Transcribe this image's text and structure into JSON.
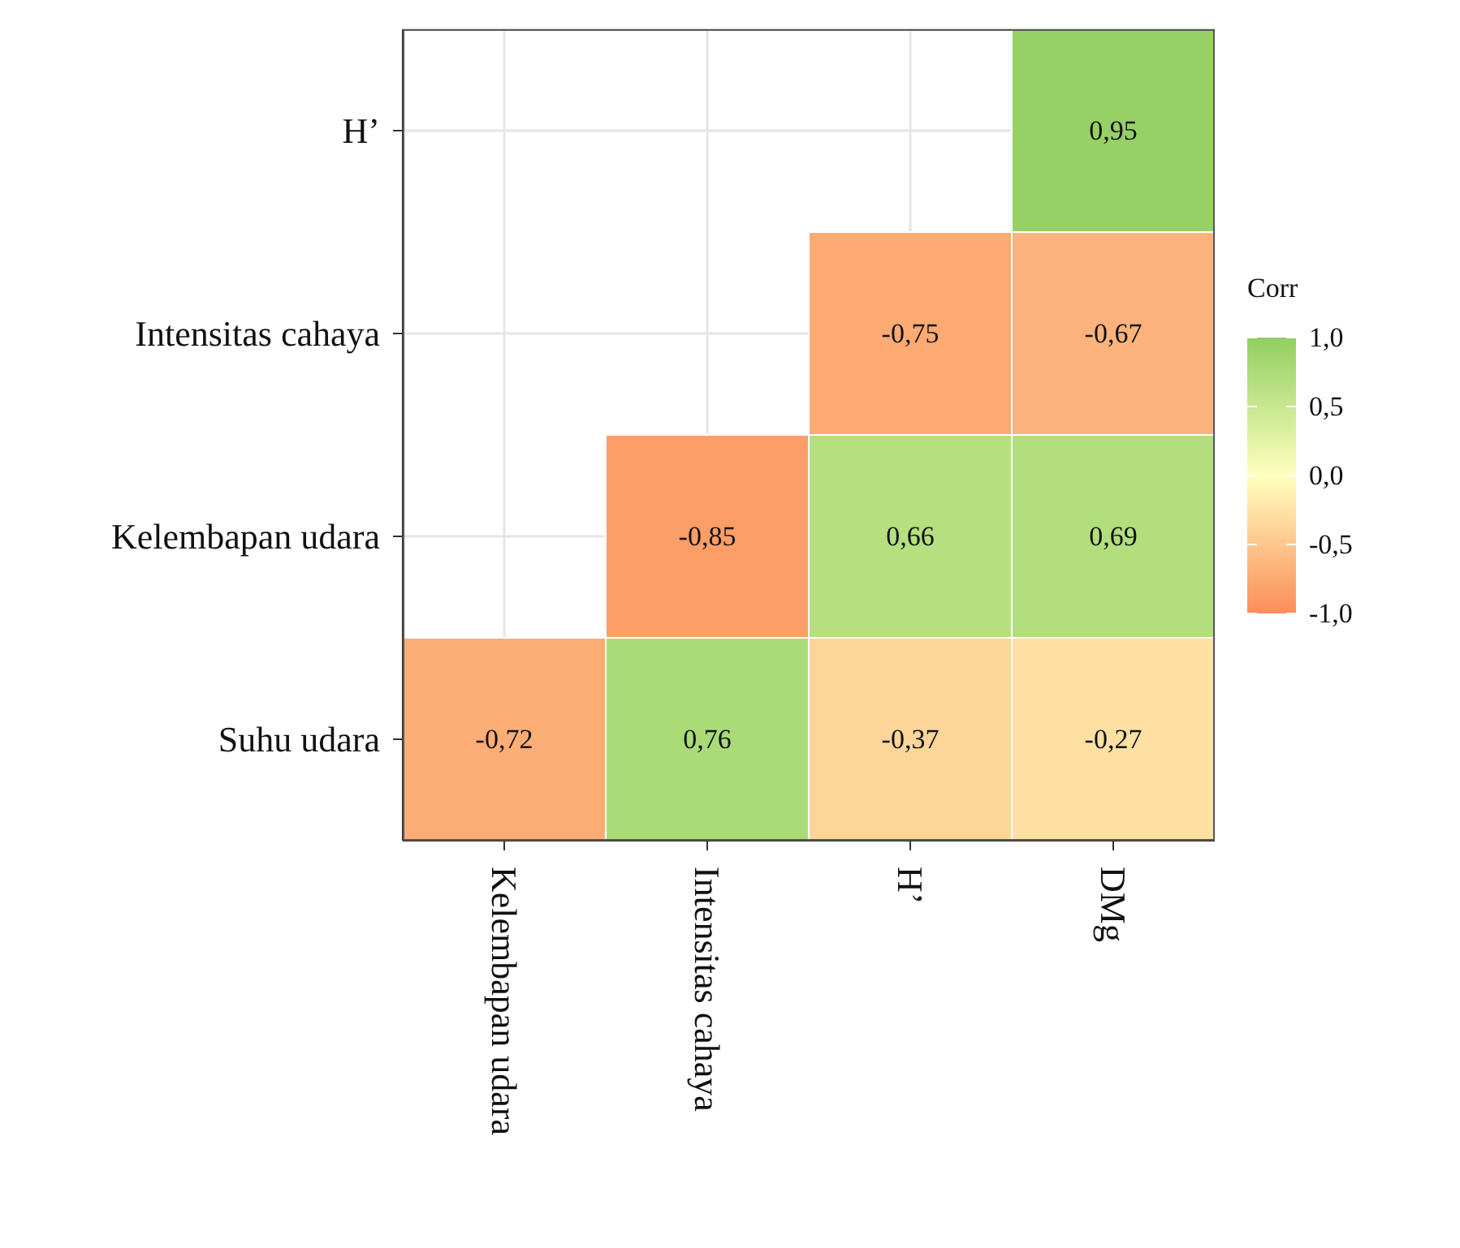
{
  "chart_data": {
    "type": "heatmap",
    "categories": [
      "Kelembapan udara",
      "Intensitas cahaya",
      "H’",
      "DMg"
    ],
    "y_categories": [
      "H’",
      "Intensitas cahaya",
      "Kelembapan udara",
      "Suhu udara"
    ],
    "cells": [
      [
        null,
        null,
        null,
        0.95
      ],
      [
        null,
        null,
        -0.75,
        -0.67
      ],
      [
        null,
        -0.85,
        0.66,
        0.69
      ],
      [
        -0.72,
        0.76,
        -0.37,
        -0.27
      ]
    ],
    "cell_labels": [
      [
        null,
        null,
        null,
        "0,95"
      ],
      [
        null,
        null,
        "-0,75",
        "-0,67"
      ],
      [
        null,
        "-0,85",
        "0,66",
        "0,69"
      ],
      [
        "-0,72",
        "0,76",
        "-0,37",
        "-0,27"
      ]
    ],
    "clabel": "Corr",
    "clim": [
      -1,
      1
    ],
    "cticks": [
      {
        "value": 1,
        "label": "1,0"
      },
      {
        "value": 0.5,
        "label": "0,5"
      },
      {
        "value": 0,
        "label": "0,0"
      },
      {
        "value": -0.5,
        "label": "-0,5"
      },
      {
        "value": -1,
        "label": "-1,0"
      }
    ],
    "colors": [
      "#fc8d59",
      "#ffffbf",
      "#91cf60"
    ],
    "grid": true
  }
}
